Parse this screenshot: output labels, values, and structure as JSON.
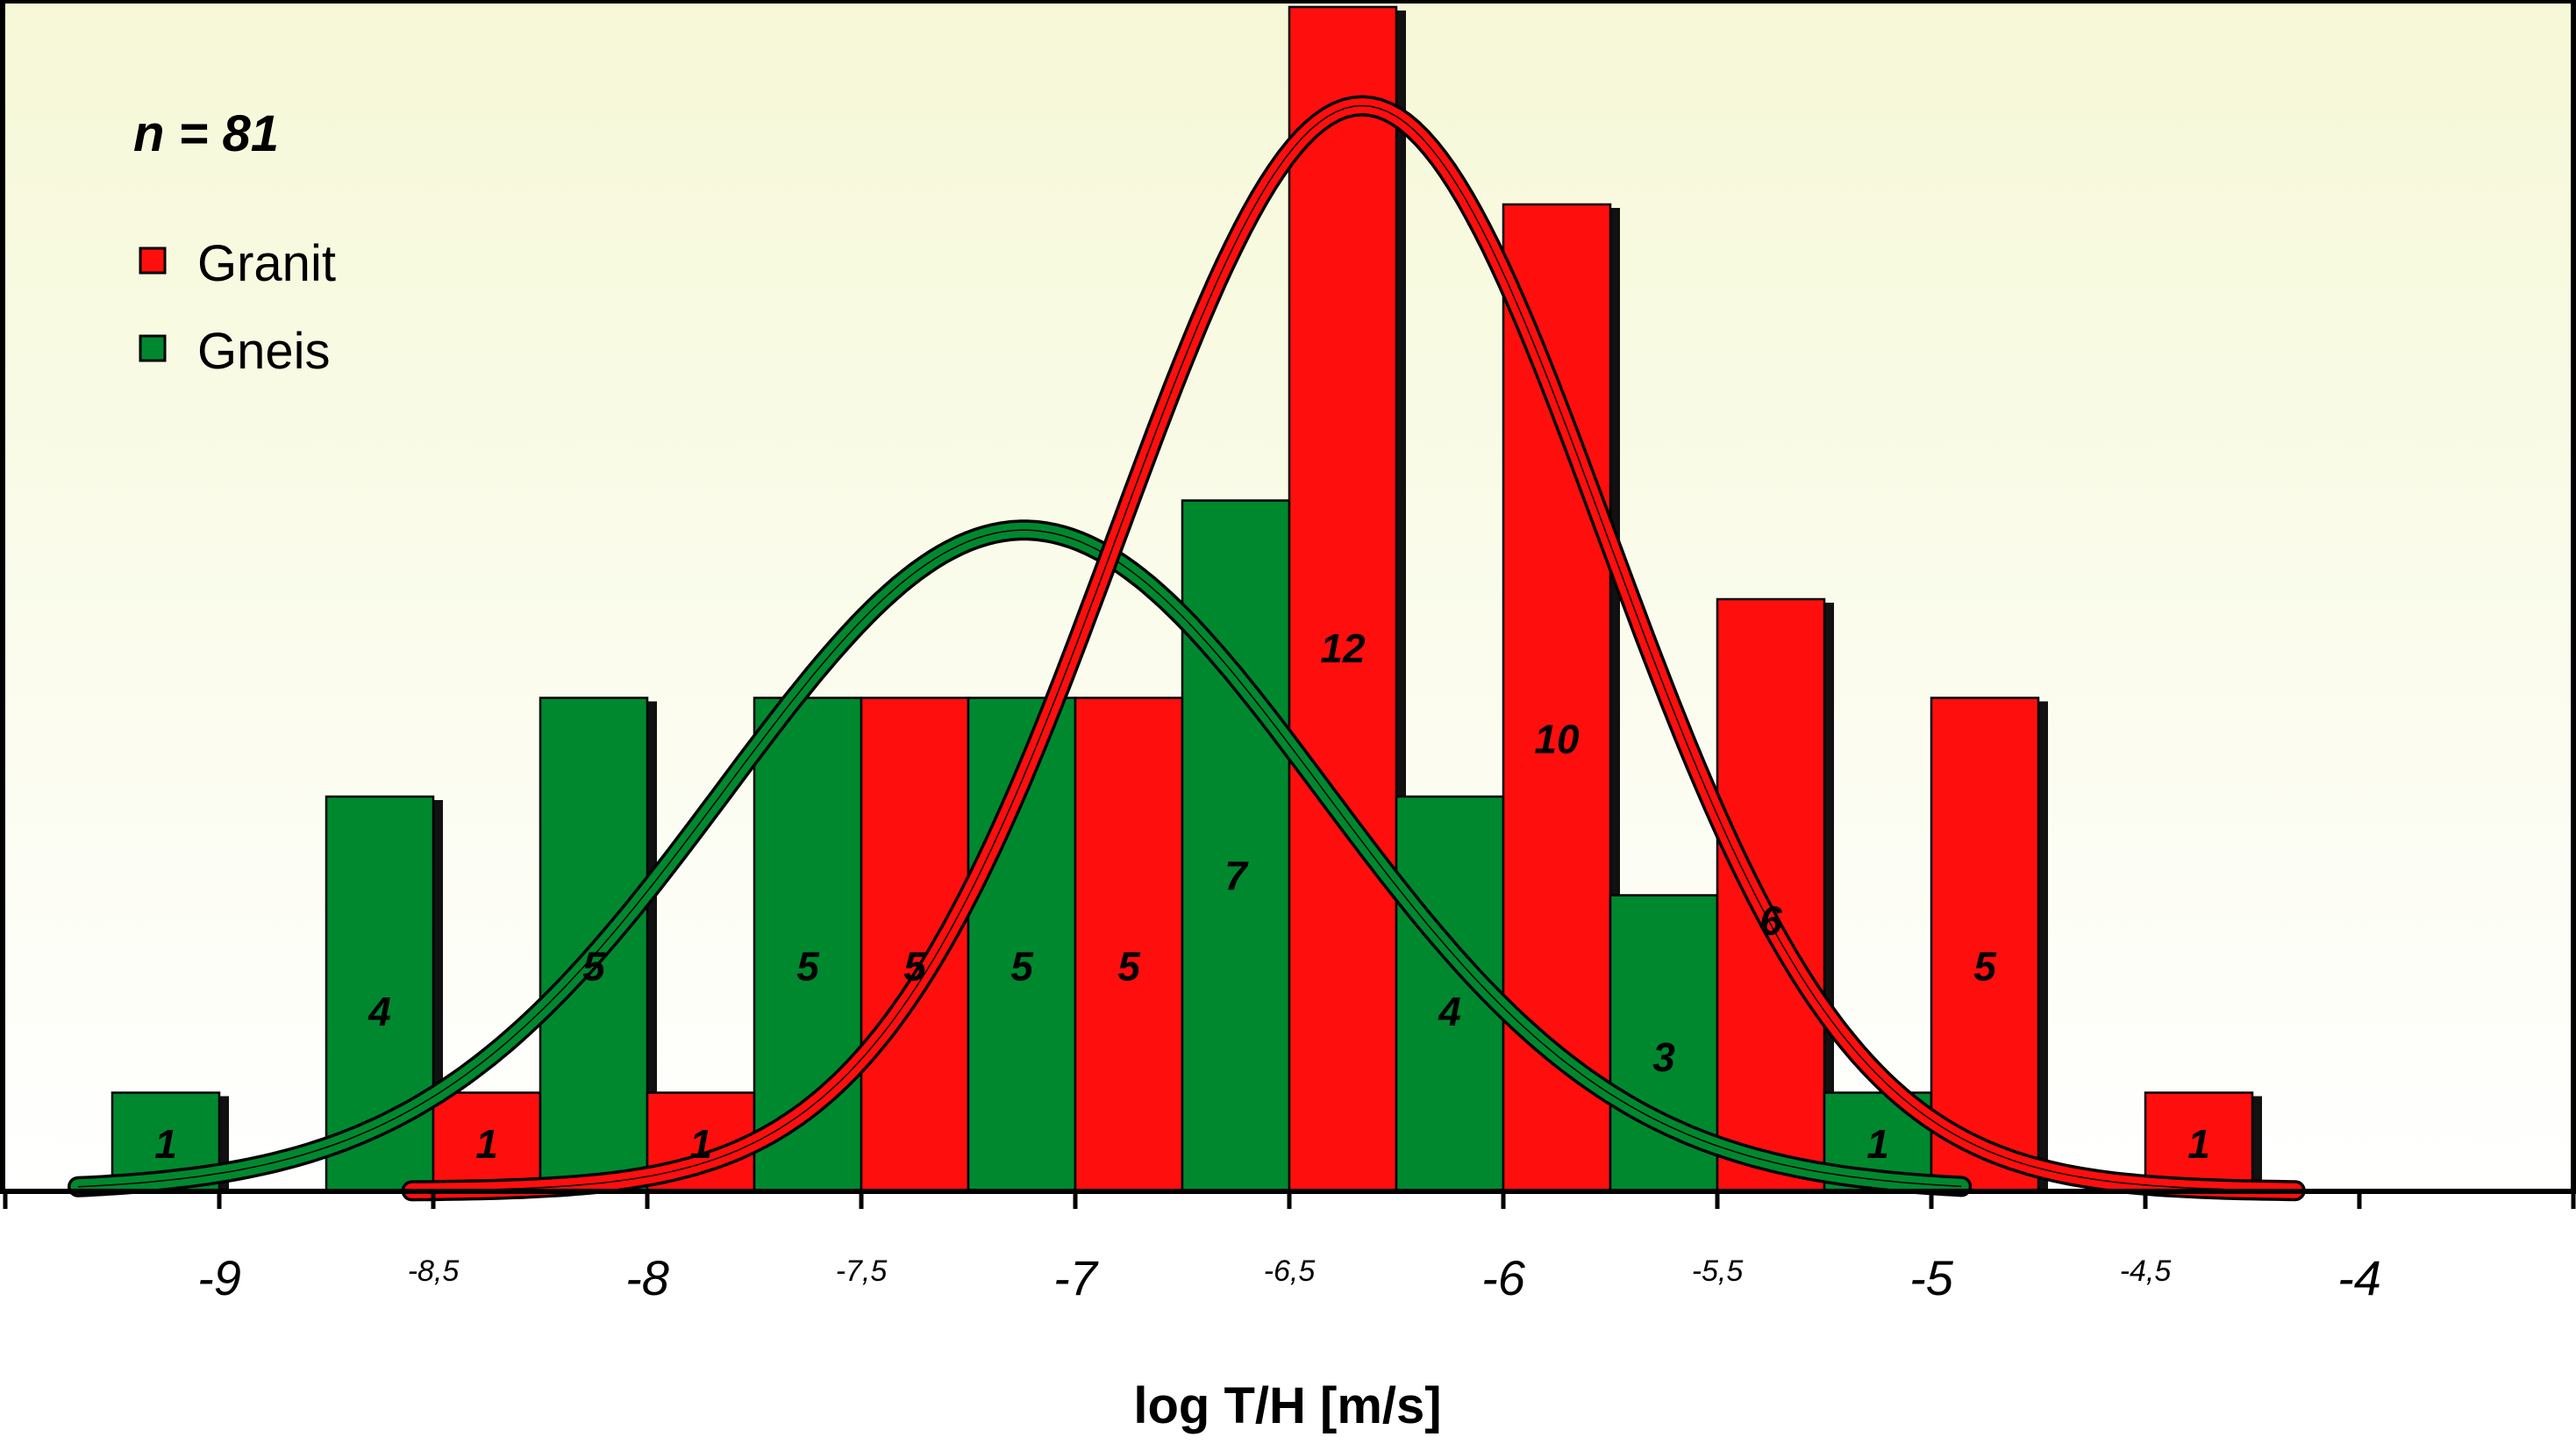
{
  "chart_data": {
    "type": "bar",
    "annotation": "n = 81",
    "xlabel": "log T/H [m/s]",
    "ylabel": "",
    "xlim": [
      -9.5,
      -3.5
    ],
    "ylim": [
      0,
      12
    ],
    "grid": false,
    "legend": {
      "placement": "top-left"
    },
    "bin_width": 0.25,
    "x_ticks": [
      {
        "value": -9,
        "label": "-9",
        "major": true
      },
      {
        "value": -8.5,
        "label": "-8,5",
        "major": false
      },
      {
        "value": -8,
        "label": "-8",
        "major": true
      },
      {
        "value": -7.5,
        "label": "-7,5",
        "major": false
      },
      {
        "value": -7,
        "label": "-7",
        "major": true
      },
      {
        "value": -6.5,
        "label": "-6,5",
        "major": false
      },
      {
        "value": -6,
        "label": "-6",
        "major": true
      },
      {
        "value": -5.5,
        "label": "-5,5",
        "major": false
      },
      {
        "value": -5,
        "label": "-5",
        "major": true
      },
      {
        "value": -4.5,
        "label": "-4,5",
        "major": false
      },
      {
        "value": -4,
        "label": "-4",
        "major": true
      }
    ],
    "series": [
      {
        "name": "Granit",
        "color": "#ff0e0e",
        "bars": [
          {
            "x0": -8.5,
            "x1": -8.25,
            "value": 1
          },
          {
            "x0": -8.0,
            "x1": -7.75,
            "value": 1
          },
          {
            "x0": -7.5,
            "x1": -7.25,
            "value": 5
          },
          {
            "x0": -7.0,
            "x1": -6.75,
            "value": 5
          },
          {
            "x0": -6.5,
            "x1": -6.25,
            "value": 12
          },
          {
            "x0": -6.0,
            "x1": -5.75,
            "value": 10
          },
          {
            "x0": -5.5,
            "x1": -5.25,
            "value": 6
          },
          {
            "x0": -5.0,
            "x1": -4.75,
            "value": 5
          },
          {
            "x0": -4.5,
            "x1": -4.25,
            "value": 1
          }
        ],
        "curve": {
          "type": "normal",
          "mean": -6.33,
          "sd": 0.57,
          "peak": 11,
          "range": [
            -8.55,
            -4.15
          ]
        }
      },
      {
        "name": "Gneis",
        "color": "#00882f",
        "bars": [
          {
            "x0": -9.25,
            "x1": -9.0,
            "value": 1
          },
          {
            "x0": -8.75,
            "x1": -8.5,
            "value": 4
          },
          {
            "x0": -8.25,
            "x1": -8.0,
            "value": 5
          },
          {
            "x0": -7.75,
            "x1": -7.5,
            "value": 5
          },
          {
            "x0": -7.25,
            "x1": -7.0,
            "value": 5
          },
          {
            "x0": -6.75,
            "x1": -6.5,
            "value": 7
          },
          {
            "x0": -6.25,
            "x1": -6.0,
            "value": 4
          },
          {
            "x0": -5.75,
            "x1": -5.5,
            "value": 3
          },
          {
            "x0": -5.25,
            "x1": -5.0,
            "value": 1
          }
        ],
        "curve": {
          "type": "normal",
          "mean": -7.12,
          "sd": 0.7,
          "peak": 6.7,
          "range": [
            -9.33,
            -4.93
          ]
        }
      }
    ]
  }
}
